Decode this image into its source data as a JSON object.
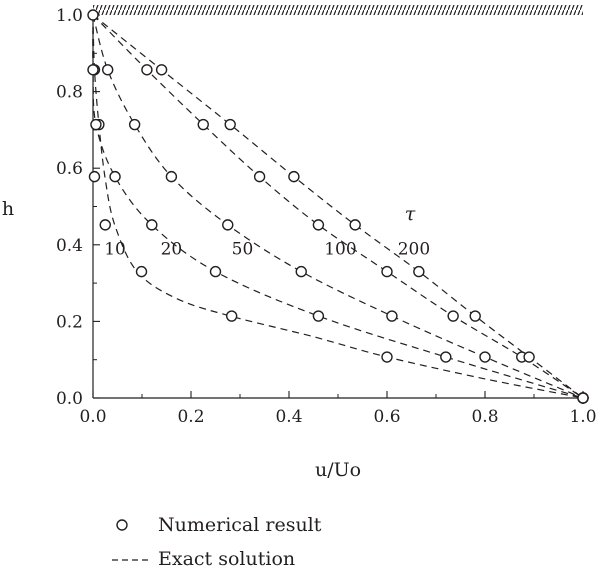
{
  "chart_data": {
    "type": "line",
    "xlabel": "u/Uo",
    "ylabel": "h",
    "xlim": [
      0,
      1.0
    ],
    "ylim": [
      0,
      1.0
    ],
    "x_ticks": [
      "0.0",
      "0.2",
      "0.4",
      "0.6",
      "0.8",
      "1.0"
    ],
    "y_ticks": [
      "0.0",
      "0.2",
      "0.4",
      "0.6",
      "0.8",
      "1.0"
    ],
    "grid": false,
    "top_wall_hatched": true,
    "parameter_symbol": "τ",
    "series": [
      {
        "name": "10",
        "exact_line": [
          [
            0.0,
            1.0
          ],
          [
            0.003,
            0.857
          ],
          [
            0.012,
            0.714
          ],
          [
            0.025,
            0.571
          ],
          [
            0.045,
            0.45
          ],
          [
            0.09,
            0.33
          ],
          [
            0.17,
            0.26
          ],
          [
            0.28,
            0.214
          ],
          [
            0.45,
            0.16
          ],
          [
            0.6,
            0.107
          ],
          [
            0.8,
            0.05
          ],
          [
            1.0,
            0.0
          ]
        ],
        "numerical_points": [
          [
            0.0,
            1.0
          ],
          [
            0.003,
            0.857
          ],
          [
            0.012,
            0.714
          ],
          [
            0.003,
            0.578
          ],
          [
            0.025,
            0.452
          ],
          [
            0.099,
            0.33
          ],
          [
            0.283,
            0.214
          ],
          [
            0.6,
            0.107
          ],
          [
            1.0,
            0.0
          ]
        ]
      },
      {
        "name": "20",
        "exact_line": [
          [
            0.0,
            1.0
          ],
          [
            0.0,
            0.857
          ],
          [
            0.006,
            0.714
          ],
          [
            0.045,
            0.578
          ],
          [
            0.12,
            0.452
          ],
          [
            0.25,
            0.33
          ],
          [
            0.46,
            0.214
          ],
          [
            0.72,
            0.107
          ],
          [
            1.0,
            0.0
          ]
        ],
        "numerical_points": [
          [
            0.0,
            0.857
          ],
          [
            0.006,
            0.714
          ],
          [
            0.045,
            0.578
          ],
          [
            0.12,
            0.452
          ],
          [
            0.25,
            0.33
          ],
          [
            0.46,
            0.214
          ],
          [
            0.72,
            0.107
          ],
          [
            1.0,
            0.0
          ]
        ]
      },
      {
        "name": "50",
        "exact_line": [
          [
            0.0,
            1.0
          ],
          [
            0.03,
            0.857
          ],
          [
            0.085,
            0.714
          ],
          [
            0.16,
            0.578
          ],
          [
            0.275,
            0.452
          ],
          [
            0.425,
            0.33
          ],
          [
            0.61,
            0.214
          ],
          [
            0.8,
            0.107
          ],
          [
            1.0,
            0.0
          ]
        ],
        "numerical_points": [
          [
            0.03,
            0.857
          ],
          [
            0.085,
            0.714
          ],
          [
            0.16,
            0.578
          ],
          [
            0.275,
            0.452
          ],
          [
            0.425,
            0.33
          ],
          [
            0.61,
            0.214
          ],
          [
            0.8,
            0.107
          ],
          [
            1.0,
            0.0
          ]
        ]
      },
      {
        "name": "100",
        "exact_line": [
          [
            0.0,
            1.0
          ],
          [
            0.11,
            0.857
          ],
          [
            0.225,
            0.714
          ],
          [
            0.34,
            0.578
          ],
          [
            0.46,
            0.452
          ],
          [
            0.6,
            0.33
          ],
          [
            0.735,
            0.214
          ],
          [
            0.875,
            0.107
          ],
          [
            1.0,
            0.0
          ]
        ],
        "numerical_points": [
          [
            0.11,
            0.857
          ],
          [
            0.225,
            0.714
          ],
          [
            0.34,
            0.578
          ],
          [
            0.46,
            0.452
          ],
          [
            0.6,
            0.33
          ],
          [
            0.735,
            0.214
          ],
          [
            0.875,
            0.107
          ],
          [
            1.0,
            0.0
          ]
        ]
      },
      {
        "name": "200",
        "exact_line": [
          [
            0.0,
            1.0
          ],
          [
            0.14,
            0.857
          ],
          [
            0.28,
            0.714
          ],
          [
            0.41,
            0.578
          ],
          [
            0.535,
            0.452
          ],
          [
            0.665,
            0.33
          ],
          [
            0.78,
            0.214
          ],
          [
            0.89,
            0.107
          ],
          [
            1.0,
            0.0
          ]
        ],
        "numerical_points": [
          [
            0.14,
            0.857
          ],
          [
            0.28,
            0.714
          ],
          [
            0.41,
            0.578
          ],
          [
            0.535,
            0.452
          ],
          [
            0.665,
            0.33
          ],
          [
            0.78,
            0.214
          ],
          [
            0.89,
            0.107
          ],
          [
            1.0,
            0.0
          ]
        ]
      }
    ],
    "legend": [
      {
        "symbol": "circle",
        "label": "Numerical result"
      },
      {
        "symbol": "dashed-line",
        "label": "Exact solution"
      }
    ],
    "legend_placement": "bottom-left"
  }
}
